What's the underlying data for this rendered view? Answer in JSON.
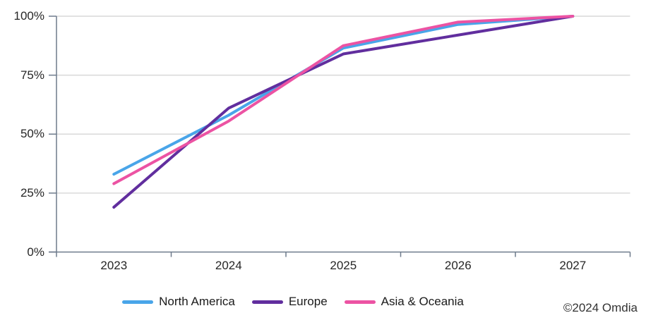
{
  "chart_data": {
    "type": "line",
    "title": "",
    "xlabel": "",
    "ylabel": "",
    "categories": [
      "2023",
      "2024",
      "2025",
      "2026",
      "2027"
    ],
    "series": [
      {
        "name": "North America",
        "color": "#49A5E9",
        "values": [
          33,
          58,
          86.5,
          96.5,
          100
        ]
      },
      {
        "name": "Europe",
        "color": "#612E9E",
        "values": [
          19,
          61,
          84,
          92,
          100
        ]
      },
      {
        "name": "Asia & Oceania",
        "color": "#EC53A3",
        "values": [
          29,
          55.5,
          87.5,
          97.5,
          100
        ]
      }
    ],
    "yticks": [
      {
        "label": "100%",
        "value": 100
      },
      {
        "label": "75%",
        "value": 75
      },
      {
        "label": "50%",
        "value": 50
      },
      {
        "label": "25%",
        "value": 25
      },
      {
        "label": "0%",
        "value": 0
      }
    ],
    "ylim": [
      0,
      100
    ],
    "grid": true,
    "legend_position": "bottom"
  },
  "colors": {
    "axis": "#6E7B8C",
    "gridline": "#D9D9D9",
    "text": "#262626"
  },
  "footer": {
    "copyright": "©2024 Omdia"
  }
}
